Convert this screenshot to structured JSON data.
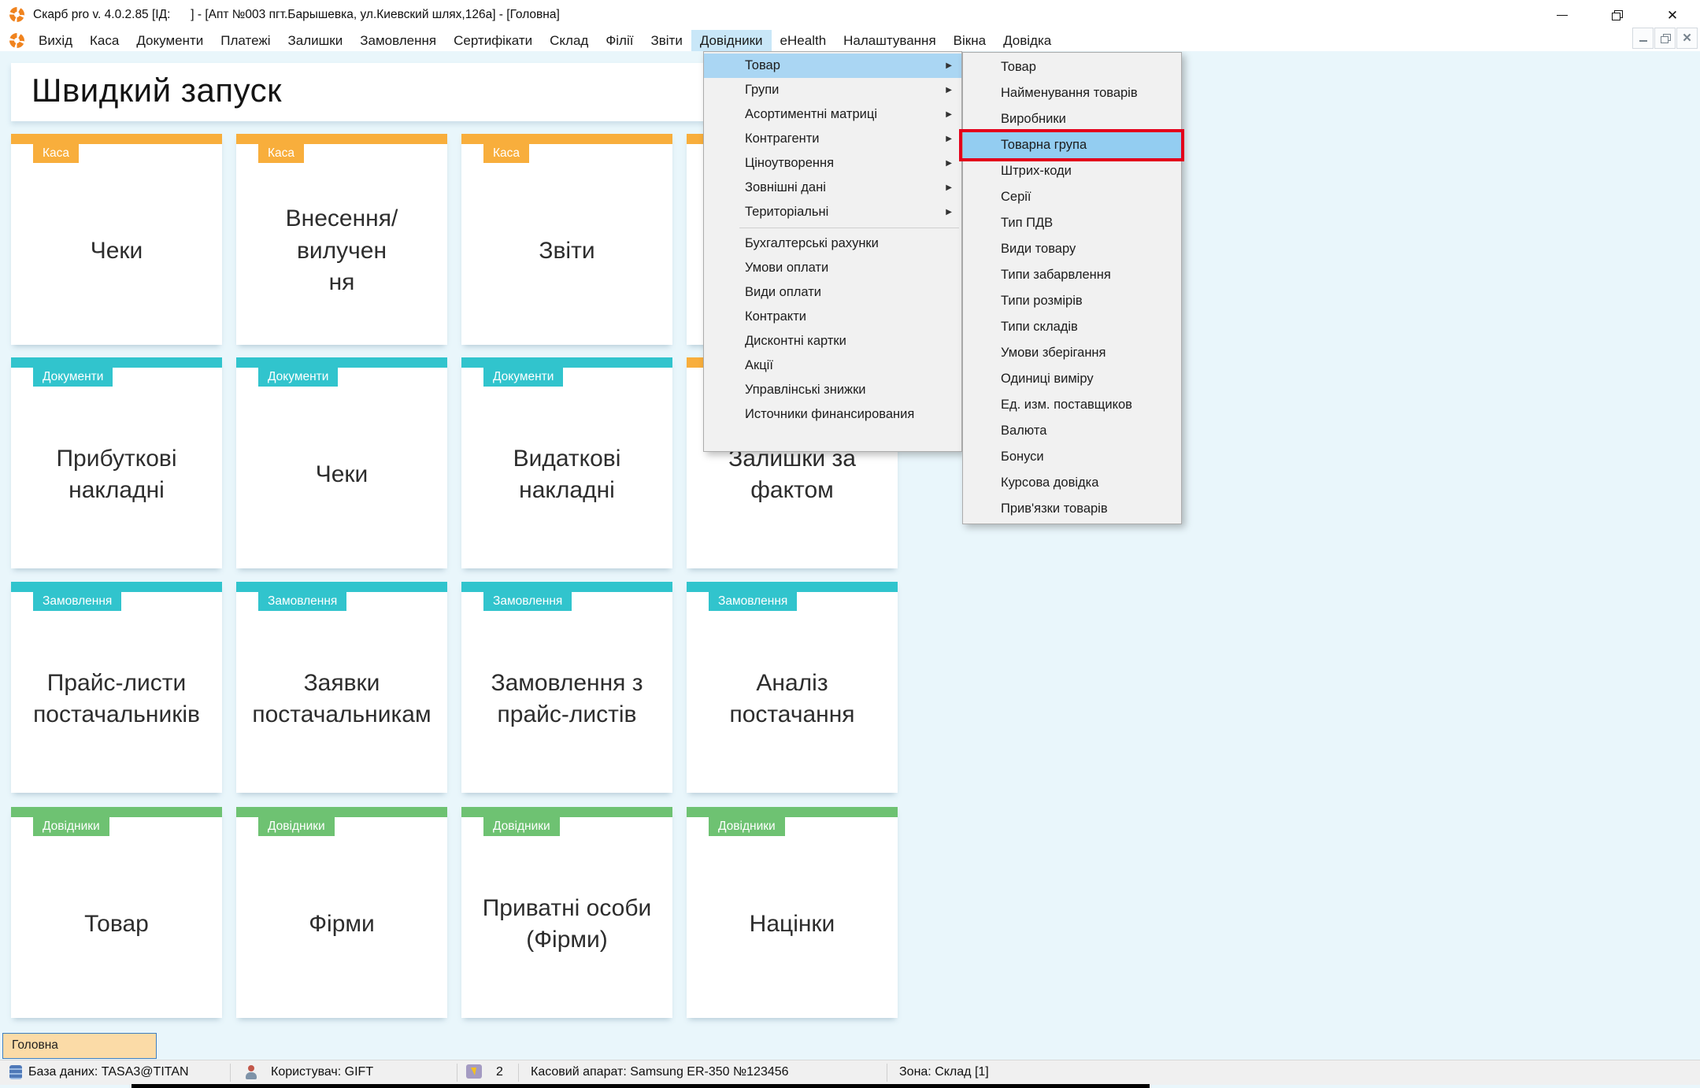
{
  "window": {
    "title": "Скарб pro v. 4.0.2.85 [ІД:      ] - [Апт №003 пгт.Барышевка, ул.Киевский шлях,126а] - [Головна]",
    "controls": [
      "minimize",
      "restore",
      "close"
    ],
    "mdi_controls": [
      "minimize",
      "restore",
      "close"
    ]
  },
  "icons": {
    "app_logo": "orange-ring-logo",
    "submenu_arrow": "▶",
    "close_glyph": "✕",
    "mdi_close_glyph": "✕"
  },
  "colors": {
    "orange": "#F8AE3C",
    "teal": "#31C4CD",
    "green": "#6EC272",
    "menu_highlight": "#C9E7F8",
    "dropdown_highlight": "#AAD6F3",
    "submenu_highlight": "#93CDF1",
    "selection_box_red": "#E3001B",
    "tab_fill": "#FBDBA7",
    "tab_border": "#3E7FC1",
    "background": "#E9F6FB"
  },
  "menu_bar": {
    "items": [
      {
        "label": "Вихід"
      },
      {
        "label": "Каса"
      },
      {
        "label": "Документи"
      },
      {
        "label": "Платежі"
      },
      {
        "label": "Залишки"
      },
      {
        "label": "Замовлення"
      },
      {
        "label": "Сертифікати"
      },
      {
        "label": "Склад"
      },
      {
        "label": "Філії"
      },
      {
        "label": "Звіти"
      },
      {
        "label": "Довідники",
        "highlighted": true
      },
      {
        "label": "eHealth"
      },
      {
        "label": "Налаштування"
      },
      {
        "label": "Вікна"
      },
      {
        "label": "Довідка"
      }
    ]
  },
  "dropdown_menu": {
    "items": [
      {
        "label": "Товар",
        "submenu": true,
        "highlighted": true
      },
      {
        "label": "Групи",
        "submenu": true
      },
      {
        "label": "Асортиментні матриці",
        "submenu": true
      },
      {
        "label": "Контрагенти",
        "submenu": true
      },
      {
        "label": "Ціноутворення",
        "submenu": true
      },
      {
        "label": "Зовнішні дані",
        "submenu": true
      },
      {
        "label": "Територіальні",
        "submenu": true
      },
      {
        "separator": true
      },
      {
        "label": "Бухгалтерські рахунки"
      },
      {
        "label": "Умови оплати"
      },
      {
        "label": "Види оплати"
      },
      {
        "label": "Контракти"
      },
      {
        "label": "Дисконтні картки"
      },
      {
        "label": "Акції"
      },
      {
        "label": "Управлінські знижки"
      },
      {
        "label": "Источники финансирования"
      }
    ]
  },
  "submenu": {
    "highlighted_index": 3,
    "items": [
      {
        "label": "Товар"
      },
      {
        "label": "Найменування товарів"
      },
      {
        "label": "Виробники"
      },
      {
        "label": "Товарна група"
      },
      {
        "label": "Штрих-коди"
      },
      {
        "label": "Серії"
      },
      {
        "label": "Тип ПДВ"
      },
      {
        "label": "Види товару"
      },
      {
        "label": "Типи забарвлення"
      },
      {
        "label": "Типи розмірів"
      },
      {
        "label": "Типи складів"
      },
      {
        "label": "Умови зберігання"
      },
      {
        "label": "Одиниці виміру"
      },
      {
        "label": "Ед. изм. поставщиков"
      },
      {
        "label": "Валюта"
      },
      {
        "label": "Бонуси"
      },
      {
        "label": "Курсова довідка"
      },
      {
        "label": "Прив'язки товарів"
      }
    ]
  },
  "page": {
    "title": "Швидкий запуск"
  },
  "quick_launch": {
    "rows": [
      {
        "tiles": [
          {
            "color": "orange",
            "tag": "Каса",
            "lines": [
              "Чеки"
            ]
          },
          {
            "color": "orange",
            "tag": "Каса",
            "lines": [
              "Внесення/вилучен",
              "ня"
            ]
          },
          {
            "color": "orange",
            "tag": "Каса",
            "lines": [
              "Звіти"
            ]
          },
          {
            "color": "orange",
            "tag": "",
            "lines": []
          }
        ]
      },
      {
        "tiles": [
          {
            "color": "teal",
            "tag": "Документи",
            "lines": [
              "Прибуткові",
              "накладні"
            ]
          },
          {
            "color": "teal",
            "tag": "Документи",
            "lines": [
              "Чеки"
            ]
          },
          {
            "color": "teal",
            "tag": "Документи",
            "lines": [
              "Видаткові",
              "накладні"
            ]
          },
          {
            "color": "orange",
            "tag": "",
            "lines": [
              "Залишки за",
              "фактом"
            ]
          }
        ]
      },
      {
        "tiles": [
          {
            "color": "teal",
            "tag": "Замовлення",
            "lines": [
              "Прайс-листи",
              "постачальників"
            ]
          },
          {
            "color": "teal",
            "tag": "Замовлення",
            "lines": [
              "Заявки",
              "постачальникам"
            ]
          },
          {
            "color": "teal",
            "tag": "Замовлення",
            "lines": [
              "Замовлення з",
              "прайс-листів"
            ]
          },
          {
            "color": "teal",
            "tag": "Замовлення",
            "lines": [
              "Аналіз постачання"
            ]
          }
        ]
      },
      {
        "tiles": [
          {
            "color": "green",
            "tag": "Довідники",
            "lines": [
              "Товар"
            ]
          },
          {
            "color": "green",
            "tag": "Довідники",
            "lines": [
              "Фірми"
            ]
          },
          {
            "color": "green",
            "tag": "Довідники",
            "lines": [
              "Приватні особи",
              "(Фірми)"
            ]
          },
          {
            "color": "green",
            "tag": "Довідники",
            "lines": [
              "Націнки"
            ]
          }
        ]
      }
    ]
  },
  "tabs": {
    "active": "Головна"
  },
  "status_bar": {
    "items": [
      {
        "icon": "database-icon",
        "text": "База даних: TASA3@TITAN"
      },
      {
        "icon": "user-icon",
        "text": "Користувач: GIFT"
      },
      {
        "icon": "cash-register-icon",
        "text": "2"
      },
      {
        "icon": null,
        "text": "Касовий апарат: Samsung ER-350 №123456"
      },
      {
        "icon": null,
        "text": "Зона: Склад [1]"
      }
    ]
  }
}
